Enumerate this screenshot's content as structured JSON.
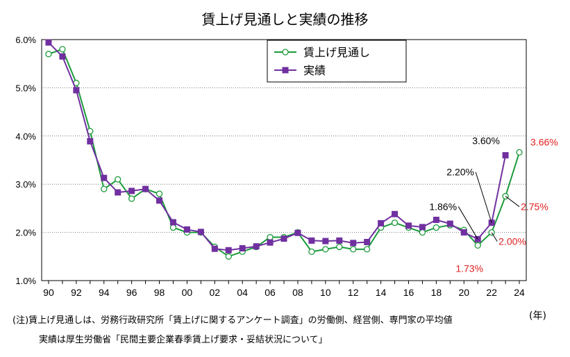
{
  "chart_data": {
    "type": "line",
    "title": "賃上げ見通しと実績の推移",
    "x_unit_label": "(年)",
    "x_tick_labels": [
      "90",
      "92",
      "94",
      "96",
      "98",
      "00",
      "02",
      "04",
      "06",
      "08",
      "10",
      "12",
      "14",
      "16",
      "18",
      "20",
      "22",
      "24"
    ],
    "y_tick_labels": [
      "1.0%",
      "2.0%",
      "3.0%",
      "4.0%",
      "5.0%",
      "6.0%"
    ],
    "ylim": [
      1.0,
      6.0
    ],
    "grid": "horizontal-dotted",
    "legend_position": "top-right",
    "x": [
      1990,
      1991,
      1992,
      1993,
      1994,
      1995,
      1996,
      1997,
      1998,
      1999,
      2000,
      2001,
      2002,
      2003,
      2004,
      2005,
      2006,
      2007,
      2008,
      2009,
      2010,
      2011,
      2012,
      2013,
      2014,
      2015,
      2016,
      2017,
      2018,
      2019,
      2020,
      2021,
      2022,
      2023,
      2024
    ],
    "series": [
      {
        "name": "賃上げ見通し",
        "color": "#1a9a3a",
        "marker": "open-circle",
        "values": [
          5.7,
          5.8,
          5.1,
          4.1,
          2.9,
          3.1,
          2.7,
          2.9,
          2.8,
          2.1,
          2.0,
          2.0,
          1.7,
          1.5,
          1.6,
          1.7,
          1.9,
          1.9,
          2.0,
          1.6,
          1.65,
          1.7,
          1.65,
          1.65,
          2.1,
          2.2,
          2.1,
          2.0,
          2.1,
          2.15,
          2.05,
          1.73,
          2.0,
          2.75,
          3.66
        ]
      },
      {
        "name": "実績",
        "color": "#7030a0",
        "marker": "filled-square",
        "values": [
          5.94,
          5.65,
          4.95,
          3.89,
          3.13,
          2.83,
          2.86,
          2.9,
          2.66,
          2.21,
          2.06,
          2.01,
          1.66,
          1.63,
          1.67,
          1.71,
          1.79,
          1.87,
          1.99,
          1.83,
          1.82,
          1.83,
          1.78,
          1.8,
          2.19,
          2.38,
          2.14,
          2.11,
          2.26,
          2.18,
          2.0,
          1.86,
          2.2,
          3.6,
          null
        ]
      }
    ],
    "annotations": [
      {
        "text": "3.60%",
        "year": 2023,
        "value": 3.6,
        "color": "#000000"
      },
      {
        "text": "2.20%",
        "year": 2022,
        "value": 2.2,
        "color": "#000000"
      },
      {
        "text": "1.86%",
        "year": 2021,
        "value": 1.86,
        "color": "#000000"
      },
      {
        "text": "3.66%",
        "year": 2024,
        "value": 3.66,
        "color": "#e02020"
      },
      {
        "text": "2.75%",
        "year": 2023,
        "value": 2.75,
        "color": "#e02020"
      },
      {
        "text": "2.00%",
        "year": 2022,
        "value": 2.0,
        "color": "#e02020"
      },
      {
        "text": "1.73%",
        "year": 2021,
        "value": 1.73,
        "color": "#e02020"
      }
    ]
  },
  "notes": {
    "line1": "(注)賃上げ見通しは、労務行政研究所「賃上げに関するアンケート調査」の労働側、経営側、専門家の平均値",
    "line2": "実績は厚生労働省「民間主要企業春季賃上げ要求・妥結状況について」"
  }
}
